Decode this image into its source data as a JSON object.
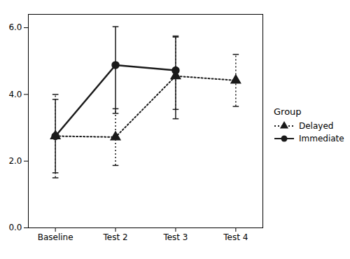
{
  "chart_data": {
    "type": "line",
    "categories": [
      "Baseline",
      "Test 2",
      "Test 3",
      "Test 4"
    ],
    "series": [
      {
        "name": "Delayed",
        "color": "#1a1a1a",
        "marker": "triangle",
        "line_style": "dotted",
        "values": [
          2.75,
          2.72,
          4.55,
          4.42
        ],
        "error_up": [
          1.25,
          0.85,
          1.2,
          0.78
        ],
        "error_down": [
          1.25,
          0.85,
          1.0,
          0.78
        ]
      },
      {
        "name": "Immediate",
        "color": "#1a1a1a",
        "marker": "circle",
        "line_style": "solid",
        "values": [
          2.75,
          4.88,
          4.72,
          null
        ],
        "error_up": [
          1.1,
          1.15,
          1.0,
          null
        ],
        "error_down": [
          1.1,
          1.45,
          1.45,
          null
        ]
      }
    ],
    "legend_title": "Group",
    "legend": "right",
    "ylim": [
      0,
      6.4
    ],
    "yticks": [
      0,
      2,
      4,
      6
    ],
    "grid": false
  }
}
